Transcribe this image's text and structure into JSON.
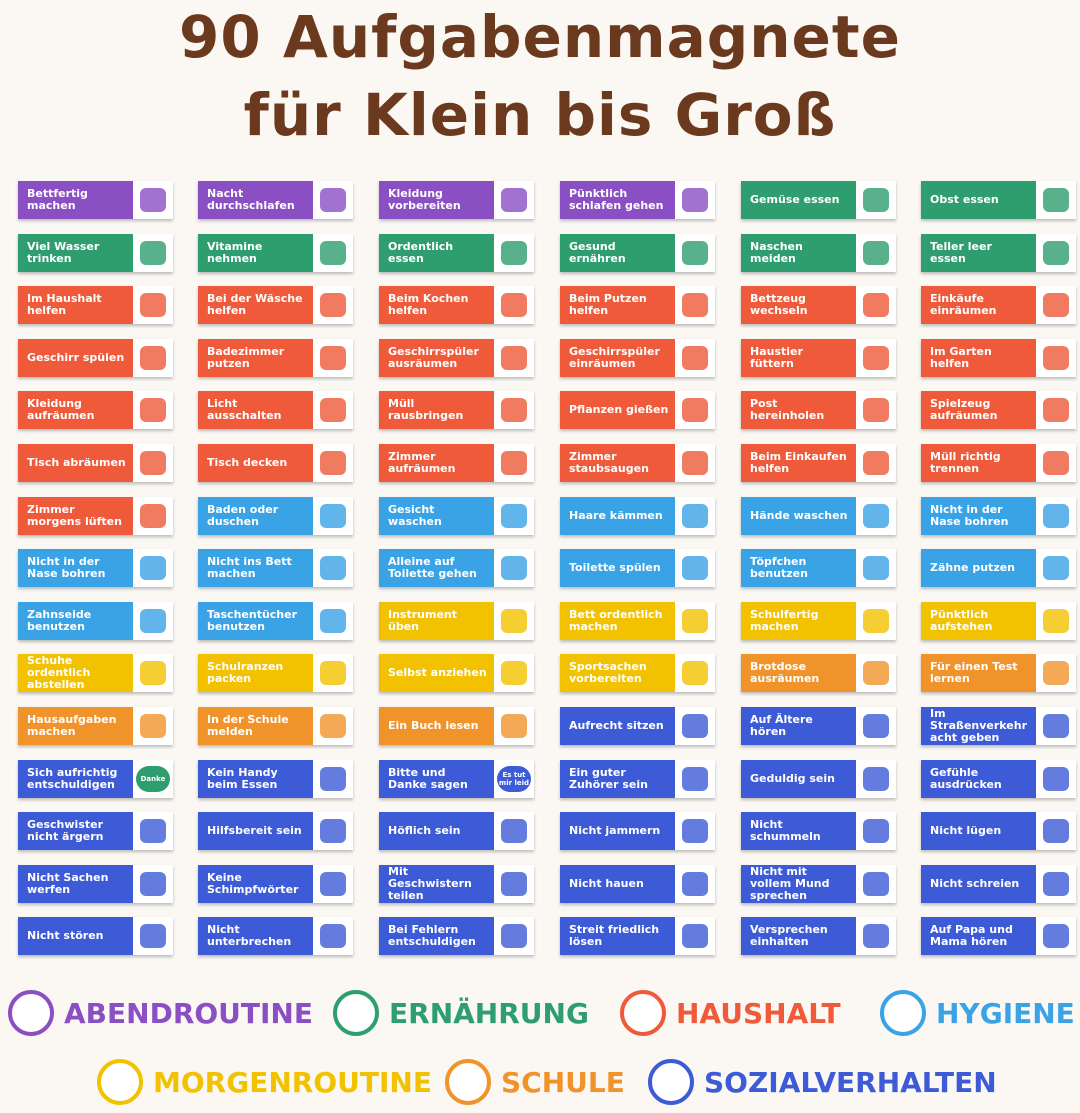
{
  "header": {
    "title_lines": [
      "90 Aufgabenmagnete",
      "für Klein bis Groß"
    ]
  },
  "magnets": [
    {
      "text": "Bettfertig machen",
      "color": "#8b4fc4"
    },
    {
      "text": "Nacht durchschlafen",
      "color": "#8b4fc4"
    },
    {
      "text": "Kleidung vorbereiten",
      "color": "#8b4fc4"
    },
    {
      "text": "Pünktlich schlafen gehen",
      "color": "#8b4fc4"
    },
    {
      "text": "Gemüse essen",
      "color": "#2e9e6e"
    },
    {
      "text": "Obst essen",
      "color": "#2e9e6e"
    },
    {
      "text": "Viel Wasser trinken",
      "color": "#2e9e6e"
    },
    {
      "text": "Vitamine nehmen",
      "color": "#2e9e6e"
    },
    {
      "text": "Ordentlich essen",
      "color": "#2e9e6e"
    },
    {
      "text": "Gesund ernähren",
      "color": "#2e9e6e"
    },
    {
      "text": "Naschen meiden",
      "color": "#2e9e6e"
    },
    {
      "text": "Teller leer essen",
      "color": "#2e9e6e"
    },
    {
      "text": "Im Haushalt helfen",
      "color": "#ee5a3a"
    },
    {
      "text": "Bei der Wäsche helfen",
      "color": "#ee5a3a"
    },
    {
      "text": "Beim Kochen helfen",
      "color": "#ee5a3a"
    },
    {
      "text": "Beim Putzen helfen",
      "color": "#ee5a3a"
    },
    {
      "text": "Bettzeug wechseln",
      "color": "#ee5a3a"
    },
    {
      "text": "Einkäufe einräumen",
      "color": "#ee5a3a"
    },
    {
      "text": "Geschirr spülen",
      "color": "#ee5a3a"
    },
    {
      "text": "Badezimmer putzen",
      "color": "#ee5a3a"
    },
    {
      "text": "Geschirrspüler ausräumen",
      "color": "#ee5a3a"
    },
    {
      "text": "Geschirrspüler einräumen",
      "color": "#ee5a3a"
    },
    {
      "text": "Haustier füttern",
      "color": "#ee5a3a"
    },
    {
      "text": "Im Garten helfen",
      "color": "#ee5a3a"
    },
    {
      "text": "Kleidung aufräumen",
      "color": "#ee5a3a"
    },
    {
      "text": "Licht ausschalten",
      "color": "#ee5a3a"
    },
    {
      "text": "Müll rausbringen",
      "color": "#ee5a3a"
    },
    {
      "text": "Pflanzen gießen",
      "color": "#ee5a3a"
    },
    {
      "text": "Post hereinholen",
      "color": "#ee5a3a"
    },
    {
      "text": "Spielzeug aufräumen",
      "color": "#ee5a3a"
    },
    {
      "text": "Tisch abräumen",
      "color": "#ee5a3a"
    },
    {
      "text": "Tisch decken",
      "color": "#ee5a3a"
    },
    {
      "text": "Zimmer aufräumen",
      "color": "#ee5a3a"
    },
    {
      "text": "Zimmer staubsaugen",
      "color": "#ee5a3a"
    },
    {
      "text": "Beim Einkaufen helfen",
      "color": "#ee5a3a"
    },
    {
      "text": "Müll richtig trennen",
      "color": "#ee5a3a"
    },
    {
      "text": "Zimmer morgens lüften",
      "color": "#ee5a3a"
    },
    {
      "text": "Baden oder duschen",
      "color": "#3aa3e6"
    },
    {
      "text": "Gesicht waschen",
      "color": "#3aa3e6"
    },
    {
      "text": "Haare kämmen",
      "color": "#3aa3e6"
    },
    {
      "text": "Hände waschen",
      "color": "#3aa3e6"
    },
    {
      "text": "Nicht in der Nase bohren",
      "color": "#3aa3e6"
    },
    {
      "text": "Nicht in der Nase bohren",
      "color": "#3aa3e6"
    },
    {
      "text": "Nicht ins Bett machen",
      "color": "#3aa3e6"
    },
    {
      "text": "Alleine auf Toilette gehen",
      "color": "#3aa3e6"
    },
    {
      "text": "Toilette spülen",
      "color": "#3aa3e6"
    },
    {
      "text": "Töpfchen benutzen",
      "color": "#3aa3e6"
    },
    {
      "text": "Zähne putzen",
      "color": "#3aa3e6"
    },
    {
      "text": "Zahnseide benutzen",
      "color": "#3aa3e6"
    },
    {
      "text": "Taschentücher benutzen",
      "color": "#3aa3e6"
    },
    {
      "text": "Instrument üben",
      "color": "#f2c200"
    },
    {
      "text": "Bett ordentlich machen",
      "color": "#f2c200"
    },
    {
      "text": "Schulfertig machen",
      "color": "#f2c200"
    },
    {
      "text": "Pünktlich aufstehen",
      "color": "#f2c200"
    },
    {
      "text": "Schuhe ordentlich abstellen",
      "color": "#f2c200"
    },
    {
      "text": "Schulranzen packen",
      "color": "#f2c200"
    },
    {
      "text": "Selbst anziehen",
      "color": "#f2c200"
    },
    {
      "text": "Sportsachen vorbereiten",
      "color": "#f2c200"
    },
    {
      "text": "Brotdose ausräumen",
      "color": "#f0932b"
    },
    {
      "text": "Für einen Test lernen",
      "color": "#f0932b"
    },
    {
      "text": "Hausaufgaben machen",
      "color": "#f0932b"
    },
    {
      "text": "In der Schule melden",
      "color": "#f0932b"
    },
    {
      "text": "Ein Buch lesen",
      "color": "#f0932b"
    },
    {
      "text": "Aufrecht sitzen",
      "color": "#3d5bd6"
    },
    {
      "text": "Auf Ältere hören",
      "color": "#3d5bd6"
    },
    {
      "text": "Im Straßenverkehr acht geben",
      "color": "#3d5bd6"
    },
    {
      "text": "Sich aufrichtig entschuldigen",
      "color": "#3d5bd6",
      "icon_text": "Danke"
    },
    {
      "text": "Kein Handy beim Essen",
      "color": "#3d5bd6"
    },
    {
      "text": "Bitte und Danke sagen",
      "color": "#3d5bd6",
      "icon_text": "Es tut mir leid"
    },
    {
      "text": "Ein guter Zuhörer sein",
      "color": "#3d5bd6"
    },
    {
      "text": "Geduldig sein",
      "color": "#3d5bd6"
    },
    {
      "text": "Gefühle ausdrücken",
      "color": "#3d5bd6"
    },
    {
      "text": "Geschwister nicht ärgern",
      "color": "#3d5bd6"
    },
    {
      "text": "Hilfsbereit sein",
      "color": "#3d5bd6"
    },
    {
      "text": "Höflich sein",
      "color": "#3d5bd6"
    },
    {
      "text": "Nicht jammern",
      "color": "#3d5bd6"
    },
    {
      "text": "Nicht schummeln",
      "color": "#3d5bd6"
    },
    {
      "text": "Nicht lügen",
      "color": "#3d5bd6"
    },
    {
      "text": "Nicht Sachen werfen",
      "color": "#3d5bd6"
    },
    {
      "text": "Keine Schimpfwörter",
      "color": "#3d5bd6"
    },
    {
      "text": "Mit Geschwistern teilen",
      "color": "#3d5bd6"
    },
    {
      "text": "Nicht hauen",
      "color": "#3d5bd6"
    },
    {
      "text": "Nicht mit vollem Mund sprechen",
      "color": "#3d5bd6"
    },
    {
      "text": "Nicht schreien",
      "color": "#3d5bd6"
    },
    {
      "text": "Nicht stören",
      "color": "#3d5bd6"
    },
    {
      "text": "Nicht unterbrechen",
      "color": "#3d5bd6"
    },
    {
      "text": "Bei Fehlern entschuldigen",
      "color": "#3d5bd6"
    },
    {
      "text": "Streit friedlich lösen",
      "color": "#3d5bd6"
    },
    {
      "text": "Versprechen einhalten",
      "color": "#3d5bd6"
    },
    {
      "text": "Auf Papa und Mama hören",
      "color": "#3d5bd6"
    }
  ],
  "legend": [
    {
      "name": "ABENDROUTINE",
      "color": "#8b4fc4"
    },
    {
      "name": "ERNÄHRUNG",
      "color": "#2e9e6e"
    },
    {
      "name": "HAUSHALT",
      "color": "#ee5a3a"
    },
    {
      "name": "HYGIENE",
      "color": "#3aa3e6"
    },
    {
      "name": "MORGENROUTINE",
      "color": "#f2c200"
    },
    {
      "name": "SCHULE",
      "color": "#f0932b"
    },
    {
      "name": "SOZIALVERHALTEN",
      "color": "#3d5bd6"
    }
  ]
}
